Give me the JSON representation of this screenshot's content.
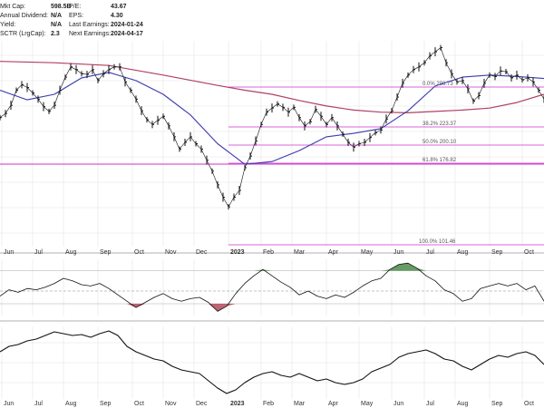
{
  "stats": {
    "left": [
      {
        "label": "Mkt Cap:",
        "value": "598.5B"
      },
      {
        "label": "Annual Dividend:",
        "value": "N/A"
      },
      {
        "label": "Yield:",
        "value": "N/A"
      },
      {
        "label": "SCTR (LrgCap):",
        "value": "2.3"
      }
    ],
    "right": [
      {
        "label": "P/E:",
        "value": "43.67"
      },
      {
        "label": "EPS:",
        "value": "4.30"
      },
      {
        "label": "Last Earnings:",
        "value": "2024-01-24"
      },
      {
        "label": "Next Earnings:",
        "value": "2024-04-17"
      }
    ]
  },
  "colors": {
    "price": "#111111",
    "ma_short": "#3a3ab0",
    "ma_long": "#b04060",
    "fib": "#cc33cc",
    "up_fill": "#4a8a4a",
    "down_fill": "#b04a5a",
    "grid": "#e4e4e4"
  },
  "chart_data": [
    {
      "type": "line",
      "panel": "price",
      "x_tick_labels": [
        "Jun",
        "Jul",
        "Aug",
        "Sep",
        "Oct",
        "Nov",
        "Dec",
        "2023",
        "Feb",
        "Mar",
        "Apr",
        "May",
        "Jun",
        "Jul",
        "Aug",
        "Sep",
        "Oct"
      ],
      "fib_levels": [
        {
          "label": "0.0% 298.73"
        },
        {
          "label": "38.2% 223.37"
        },
        {
          "label": "50.0% 200.10"
        },
        {
          "label": "61.8% 176.82"
        },
        {
          "label": "100.0% 101.46"
        }
      ],
      "series_price": [
        [
          0,
          188
        ],
        [
          6,
          194
        ],
        [
          12,
          206
        ],
        [
          18,
          228
        ],
        [
          24,
          236
        ],
        [
          30,
          232
        ],
        [
          36,
          224
        ],
        [
          42,
          215
        ],
        [
          48,
          204
        ],
        [
          54,
          197
        ],
        [
          60,
          206
        ],
        [
          66,
          228
        ],
        [
          72,
          247
        ],
        [
          78,
          262
        ],
        [
          84,
          258
        ],
        [
          90,
          252
        ],
        [
          96,
          251
        ],
        [
          102,
          258
        ],
        [
          108,
          242
        ],
        [
          114,
          252
        ],
        [
          120,
          258
        ],
        [
          126,
          262
        ],
        [
          132,
          262
        ],
        [
          138,
          240
        ],
        [
          144,
          228
        ],
        [
          150,
          215
        ],
        [
          156,
          198
        ],
        [
          162,
          185
        ],
        [
          168,
          178
        ],
        [
          174,
          184
        ],
        [
          180,
          190
        ],
        [
          186,
          176
        ],
        [
          192,
          160
        ],
        [
          198,
          142
        ],
        [
          204,
          152
        ],
        [
          210,
          160
        ],
        [
          216,
          150
        ],
        [
          222,
          142
        ],
        [
          228,
          126
        ],
        [
          234,
          110
        ],
        [
          240,
          90
        ],
        [
          246,
          72
        ],
        [
          252,
          58
        ],
        [
          258,
          72
        ],
        [
          264,
          82
        ],
        [
          270,
          115
        ],
        [
          276,
          132
        ],
        [
          282,
          154
        ],
        [
          288,
          178
        ],
        [
          294,
          196
        ],
        [
          300,
          202
        ],
        [
          306,
          208
        ],
        [
          312,
          203
        ],
        [
          318,
          196
        ],
        [
          324,
          203
        ],
        [
          330,
          188
        ],
        [
          336,
          176
        ],
        [
          342,
          182
        ],
        [
          348,
          200
        ],
        [
          354,
          190
        ],
        [
          360,
          178
        ],
        [
          366,
          188
        ],
        [
          372,
          176
        ],
        [
          378,
          164
        ],
        [
          384,
          152
        ],
        [
          390,
          145
        ],
        [
          396,
          150
        ],
        [
          402,
          152
        ],
        [
          408,
          159
        ],
        [
          414,
          166
        ],
        [
          420,
          170
        ],
        [
          426,
          186
        ],
        [
          432,
          198
        ],
        [
          438,
          218
        ],
        [
          444,
          238
        ],
        [
          450,
          250
        ],
        [
          456,
          258
        ],
        [
          462,
          262
        ],
        [
          468,
          268
        ],
        [
          474,
          278
        ],
        [
          480,
          284
        ],
        [
          486,
          290
        ],
        [
          492,
          268
        ],
        [
          498,
          252
        ],
        [
          504,
          240
        ],
        [
          510,
          242
        ],
        [
          516,
          230
        ],
        [
          522,
          212
        ],
        [
          528,
          220
        ],
        [
          534,
          238
        ],
        [
          540,
          250
        ],
        [
          546,
          248
        ],
        [
          552,
          256
        ],
        [
          558,
          255
        ],
        [
          564,
          246
        ],
        [
          570,
          250
        ],
        [
          576,
          243
        ],
        [
          582,
          246
        ],
        [
          588,
          240
        ],
        [
          594,
          228
        ],
        [
          600,
          215
        ]
      ],
      "series_ma_short": [
        [
          0,
          228
        ],
        [
          30,
          214
        ],
        [
          60,
          222
        ],
        [
          90,
          246
        ],
        [
          120,
          254
        ],
        [
          150,
          242
        ],
        [
          180,
          222
        ],
        [
          210,
          192
        ],
        [
          240,
          150
        ],
        [
          270,
          120
        ],
        [
          300,
          124
        ],
        [
          330,
          140
        ],
        [
          360,
          160
        ],
        [
          390,
          165
        ],
        [
          420,
          172
        ],
        [
          450,
          198
        ],
        [
          480,
          234
        ],
        [
          510,
          247
        ],
        [
          540,
          250
        ],
        [
          570,
          248
        ],
        [
          600,
          245
        ]
      ],
      "series_ma_long": [
        [
          0,
          270
        ],
        [
          60,
          268
        ],
        [
          120,
          264
        ],
        [
          180,
          250
        ],
        [
          240,
          235
        ],
        [
          270,
          228
        ],
        [
          300,
          222
        ],
        [
          330,
          213
        ],
        [
          360,
          205
        ],
        [
          390,
          199
        ],
        [
          420,
          196
        ],
        [
          450,
          195
        ],
        [
          480,
          197
        ],
        [
          510,
          199
        ],
        [
          540,
          202
        ],
        [
          570,
          210
        ],
        [
          600,
          222
        ]
      ]
    },
    {
      "type": "line",
      "panel": "momentum",
      "note": "oscillator around zero with threshold bands",
      "series": [
        [
          0,
          -4
        ],
        [
          10,
          1
        ],
        [
          20,
          -1
        ],
        [
          30,
          2
        ],
        [
          40,
          1
        ],
        [
          50,
          3
        ],
        [
          60,
          6
        ],
        [
          70,
          10
        ],
        [
          80,
          8
        ],
        [
          90,
          5
        ],
        [
          100,
          4
        ],
        [
          110,
          6
        ],
        [
          120,
          2
        ],
        [
          130,
          -3
        ],
        [
          140,
          -8
        ],
        [
          150,
          -13
        ],
        [
          160,
          -9
        ],
        [
          170,
          -5
        ],
        [
          180,
          -2
        ],
        [
          190,
          -6
        ],
        [
          200,
          -8
        ],
        [
          210,
          -6
        ],
        [
          220,
          -5
        ],
        [
          230,
          -9
        ],
        [
          240,
          -16
        ],
        [
          250,
          -12
        ],
        [
          260,
          -2
        ],
        [
          270,
          6
        ],
        [
          280,
          12
        ],
        [
          290,
          17
        ],
        [
          300,
          12
        ],
        [
          310,
          7
        ],
        [
          320,
          3
        ],
        [
          330,
          -3
        ],
        [
          340,
          0
        ],
        [
          350,
          -4
        ],
        [
          360,
          -6
        ],
        [
          370,
          -3
        ],
        [
          380,
          -5
        ],
        [
          390,
          -1
        ],
        [
          400,
          4
        ],
        [
          410,
          8
        ],
        [
          420,
          10
        ],
        [
          430,
          17
        ],
        [
          440,
          21
        ],
        [
          450,
          22
        ],
        [
          460,
          18
        ],
        [
          470,
          12
        ],
        [
          480,
          8
        ],
        [
          490,
          1
        ],
        [
          500,
          -2
        ],
        [
          510,
          -8
        ],
        [
          520,
          -6
        ],
        [
          530,
          2
        ],
        [
          540,
          4
        ],
        [
          550,
          6
        ],
        [
          560,
          4
        ],
        [
          570,
          6
        ],
        [
          580,
          1
        ],
        [
          590,
          4
        ],
        [
          600,
          -8
        ]
      ]
    },
    {
      "type": "line",
      "panel": "ratio",
      "series": [
        [
          0,
          52
        ],
        [
          10,
          58
        ],
        [
          20,
          60
        ],
        [
          30,
          64
        ],
        [
          40,
          66
        ],
        [
          50,
          70
        ],
        [
          60,
          74
        ],
        [
          70,
          72
        ],
        [
          80,
          70
        ],
        [
          90,
          71
        ],
        [
          100,
          68
        ],
        [
          110,
          72
        ],
        [
          120,
          75
        ],
        [
          130,
          70
        ],
        [
          140,
          58
        ],
        [
          150,
          52
        ],
        [
          160,
          48
        ],
        [
          170,
          44
        ],
        [
          180,
          42
        ],
        [
          190,
          36
        ],
        [
          200,
          32
        ],
        [
          210,
          30
        ],
        [
          220,
          28
        ],
        [
          230,
          20
        ],
        [
          240,
          12
        ],
        [
          250,
          6
        ],
        [
          260,
          10
        ],
        [
          270,
          18
        ],
        [
          280,
          24
        ],
        [
          290,
          28
        ],
        [
          300,
          30
        ],
        [
          310,
          26
        ],
        [
          320,
          24
        ],
        [
          330,
          28
        ],
        [
          340,
          24
        ],
        [
          350,
          20
        ],
        [
          360,
          22
        ],
        [
          370,
          18
        ],
        [
          380,
          16
        ],
        [
          390,
          18
        ],
        [
          400,
          22
        ],
        [
          410,
          30
        ],
        [
          420,
          34
        ],
        [
          430,
          38
        ],
        [
          440,
          46
        ],
        [
          450,
          50
        ],
        [
          460,
          52
        ],
        [
          470,
          54
        ],
        [
          480,
          50
        ],
        [
          490,
          44
        ],
        [
          500,
          42
        ],
        [
          510,
          36
        ],
        [
          520,
          32
        ],
        [
          530,
          38
        ],
        [
          540,
          44
        ],
        [
          550,
          48
        ],
        [
          560,
          46
        ],
        [
          570,
          50
        ],
        [
          580,
          52
        ],
        [
          590,
          48
        ],
        [
          600,
          38
        ]
      ]
    }
  ]
}
